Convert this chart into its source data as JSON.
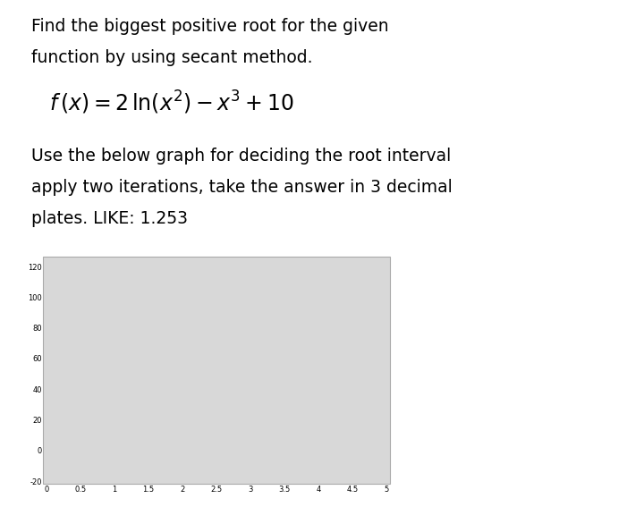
{
  "text_line1": "Find the biggest positive root for the given",
  "text_line2": "function by using secant method.",
  "formula_display": "f(x)=2ln(x^2)-x^3+10",
  "text_line3": "Use the below graph for deciding the root interval",
  "text_line4": "apply two iterations, take the answer in 3 decimal",
  "text_line5": "plates. LIKE: 1.253",
  "xlim": [
    0,
    5
  ],
  "ylim": [
    -20,
    120
  ],
  "xticks": [
    0,
    0.5,
    1,
    1.5,
    2,
    2.5,
    3,
    3.5,
    4,
    4.5,
    5
  ],
  "yticks": [
    -20,
    0,
    20,
    40,
    60,
    80,
    100,
    120
  ],
  "curve_green_color": "#4a8a4a",
  "curve_blue_color": "#8080c0",
  "plot_bg_color": "#e8e8e8",
  "plot_inner_bg": "#ffffff",
  "tick_fontsize": 6,
  "page_bg": "#ffffff"
}
